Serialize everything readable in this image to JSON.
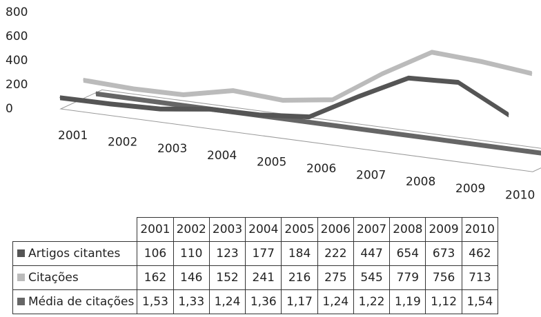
{
  "chart_data": {
    "type": "line",
    "view": "3d",
    "categories": [
      "2001",
      "2002",
      "2003",
      "2004",
      "2005",
      "2006",
      "2007",
      "2008",
      "2009",
      "2010"
    ],
    "series": [
      {
        "name": "Artigos citantes",
        "color": "#555555",
        "values": [
          106,
          110,
          123,
          177,
          184,
          222,
          447,
          654,
          673,
          462
        ]
      },
      {
        "name": "Citações",
        "color": "#bbbbbb",
        "values": [
          162,
          146,
          152,
          241,
          216,
          275,
          545,
          779,
          756,
          713
        ]
      },
      {
        "name": "Média de citações",
        "color": "#666666",
        "values": [
          "1,53",
          "1,33",
          "1,24",
          "1,36",
          "1,17",
          "1,24",
          "1,22",
          "1,19",
          "1,12",
          "1,54"
        ]
      }
    ],
    "yticks": [
      "0",
      "200",
      "400",
      "600",
      "800"
    ],
    "ylim": [
      0,
      800
    ],
    "grid": false,
    "legend": "data-table"
  }
}
